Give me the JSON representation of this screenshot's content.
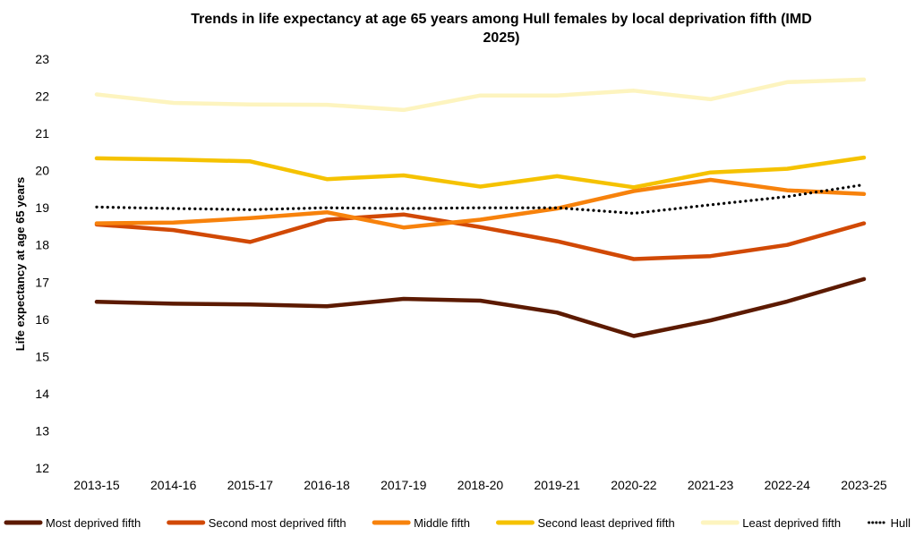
{
  "chart_data": {
    "type": "line",
    "title": "Trends in life expectancy at  age 65 years among Hull females by local deprivation fifth (IMD 2025)",
    "title_lines": [
      "Trends in life expectancy at  age 65 years among Hull females by local deprivation fifth (IMD",
      "2025)"
    ],
    "xlabel": "",
    "ylabel": "Life expectancy at  age 65 years",
    "ylim": [
      12,
      23
    ],
    "yticks": [
      "12",
      "13",
      "14",
      "15",
      "16",
      "17",
      "18",
      "19",
      "20",
      "21",
      "22",
      "23"
    ],
    "grid": false,
    "legend_position": "bottom",
    "categories": [
      "2013-15",
      "2014-16",
      "2015-17",
      "2016-18",
      "2017-19",
      "2018-20",
      "2019-21",
      "2020-22",
      "2021-23",
      "2022-24",
      "2023-25"
    ],
    "series": [
      {
        "name": "Most deprived fifth",
        "color": "#5c1a00",
        "dash": false,
        "values": [
          16.47,
          16.42,
          16.4,
          16.35,
          16.55,
          16.5,
          16.18,
          15.55,
          15.97,
          16.48,
          17.08
        ]
      },
      {
        "name": "Second most deprived fifth",
        "color": "#d14905",
        "dash": false,
        "values": [
          18.55,
          18.4,
          18.08,
          18.68,
          18.82,
          18.48,
          18.1,
          17.62,
          17.7,
          18.0,
          18.58
        ]
      },
      {
        "name": "Middle fifth",
        "color": "#f7820c",
        "dash": false,
        "values": [
          18.58,
          18.6,
          18.72,
          18.88,
          18.47,
          18.68,
          18.98,
          19.45,
          19.75,
          19.47,
          19.37
        ]
      },
      {
        "name": "Second least deprived fifth",
        "color": "#f5c200",
        "dash": false,
        "values": [
          20.33,
          20.3,
          20.25,
          19.77,
          19.87,
          19.57,
          19.85,
          19.55,
          19.95,
          20.05,
          20.35
        ]
      },
      {
        "name": "Least deprived fifth",
        "color": "#fdf4bf",
        "dash": false,
        "values": [
          22.05,
          21.82,
          21.78,
          21.77,
          21.63,
          22.02,
          22.02,
          22.15,
          21.92,
          22.38,
          22.45
        ]
      },
      {
        "name": "Hull",
        "color": "#000000",
        "dash": true,
        "values": [
          19.02,
          18.98,
          18.95,
          19.0,
          18.98,
          19.0,
          19.0,
          18.85,
          19.08,
          19.3,
          19.62
        ]
      }
    ]
  }
}
